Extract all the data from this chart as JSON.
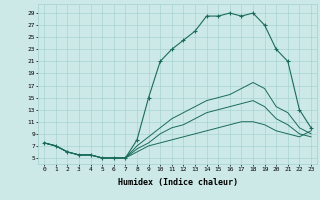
{
  "xlabel": "Humidex (Indice chaleur)",
  "x_ticks": [
    0,
    1,
    2,
    3,
    4,
    5,
    6,
    7,
    8,
    9,
    10,
    11,
    12,
    13,
    14,
    15,
    16,
    17,
    18,
    19,
    20,
    21,
    22,
    23
  ],
  "y_ticks": [
    5,
    7,
    9,
    11,
    13,
    15,
    17,
    19,
    21,
    23,
    25,
    27,
    29
  ],
  "xlim": [
    -0.5,
    23.5
  ],
  "ylim": [
    4.0,
    30.5
  ],
  "bg_color": "#cce9e7",
  "grid_color": "#a8d4d1",
  "line_color": "#1a6b5a",
  "series1_x": [
    0,
    1,
    2,
    3,
    4,
    5,
    6,
    7,
    8,
    9,
    10,
    11,
    12,
    13,
    14,
    15,
    16,
    17,
    18,
    19,
    20,
    21,
    22,
    23
  ],
  "series1_y": [
    7.5,
    7.0,
    6.0,
    5.5,
    5.5,
    5.0,
    5.0,
    5.0,
    8.0,
    15.0,
    21.0,
    23.0,
    24.5,
    26.0,
    28.5,
    28.5,
    29.0,
    28.5,
    29.0,
    27.0,
    23.0,
    21.0,
    13.0,
    10.0
  ],
  "series2_x": [
    0,
    1,
    2,
    3,
    4,
    5,
    6,
    7,
    8,
    9,
    10,
    11,
    12,
    13,
    14,
    15,
    16,
    17,
    18,
    19,
    20,
    21,
    22,
    23
  ],
  "series2_y": [
    7.5,
    7.0,
    6.0,
    5.5,
    5.5,
    5.0,
    5.0,
    5.0,
    7.0,
    8.5,
    10.0,
    11.5,
    12.5,
    13.5,
    14.5,
    15.0,
    15.5,
    16.5,
    17.5,
    16.5,
    13.5,
    12.5,
    10.0,
    9.0
  ],
  "series3_x": [
    0,
    1,
    2,
    3,
    4,
    5,
    6,
    7,
    8,
    9,
    10,
    11,
    12,
    13,
    14,
    15,
    16,
    17,
    18,
    19,
    20,
    21,
    22,
    23
  ],
  "series3_y": [
    7.5,
    7.0,
    6.0,
    5.5,
    5.5,
    5.0,
    5.0,
    5.0,
    6.5,
    7.5,
    9.0,
    10.0,
    10.5,
    11.5,
    12.5,
    13.0,
    13.5,
    14.0,
    14.5,
    13.5,
    11.5,
    10.5,
    9.0,
    8.5
  ],
  "series4_x": [
    0,
    1,
    2,
    3,
    4,
    5,
    6,
    7,
    8,
    9,
    10,
    11,
    12,
    13,
    14,
    15,
    16,
    17,
    18,
    19,
    20,
    21,
    22,
    23
  ],
  "series4_y": [
    7.5,
    7.0,
    6.0,
    5.5,
    5.5,
    5.0,
    5.0,
    5.0,
    6.0,
    7.0,
    7.5,
    8.0,
    8.5,
    9.0,
    9.5,
    10.0,
    10.5,
    11.0,
    11.0,
    10.5,
    9.5,
    9.0,
    8.5,
    9.5
  ]
}
